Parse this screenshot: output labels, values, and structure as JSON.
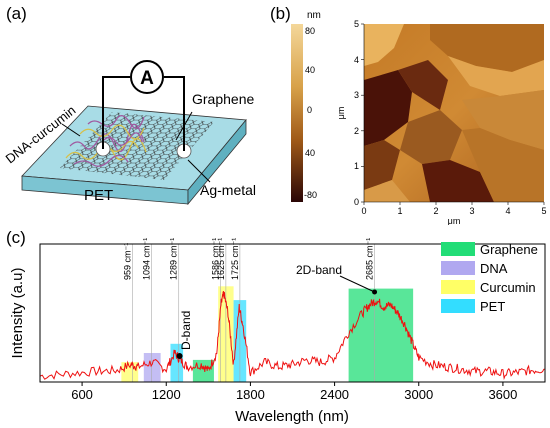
{
  "panel_a": {
    "label": "(a)",
    "ammeter_symbol": "A",
    "labels": {
      "dna_curcumin": "DNA-curcumin",
      "graphene": "Graphene",
      "pet": "PET",
      "ag_metal": "Ag-metal"
    },
    "colors": {
      "substrate_top": "#a8dce6",
      "substrate_front": "#7cc4d2",
      "substrate_side": "#5fb0c0",
      "grid": "#333333",
      "dna": "#d6c04a",
      "dna_alt": "#a05aa0"
    }
  },
  "panel_b": {
    "label": "(b)",
    "colorbar": {
      "unit": "nm",
      "ticks": [
        "80",
        "40",
        "0",
        "40",
        "-80"
      ]
    },
    "x_axis": {
      "ticks": [
        "0",
        "1",
        "2",
        "3",
        "4",
        "5"
      ],
      "label": "μm"
    },
    "y_axis": {
      "ticks": [
        "0",
        "1",
        "2",
        "3",
        "4",
        "5"
      ],
      "label": "μm"
    }
  },
  "panel_c": {
    "label": "(c)",
    "chart_data": {
      "type": "line",
      "xlabel": "Wavelength (nm)",
      "ylabel": "Intensity (a.u)",
      "xlim": [
        300,
        3900
      ],
      "x_ticks": [
        600,
        1200,
        1800,
        2400,
        3000,
        3600
      ],
      "peak_lines": [
        {
          "x": 959,
          "label": "959 cm⁻¹"
        },
        {
          "x": 1094,
          "label": "1094 cm⁻¹"
        },
        {
          "x": 1289,
          "label": "1289 cm⁻¹"
        },
        {
          "x": 1586,
          "label": "1586 cm⁻¹"
        },
        {
          "x": 1625,
          "label": "1625 cm⁻¹"
        },
        {
          "x": 1725,
          "label": "1725 cm⁻¹"
        },
        {
          "x": 2685,
          "label": "2685 cm⁻¹"
        }
      ],
      "annotations": [
        {
          "text": "D-band",
          "x": 1300
        },
        {
          "text": "2D-band",
          "x": 2700
        }
      ],
      "legend": {
        "placement": "top-right",
        "entries": [
          {
            "name": "Graphene",
            "color": "#22dd77"
          },
          {
            "name": "DNA",
            "color": "#b0a8f0"
          },
          {
            "name": "Curcumin",
            "color": "#ffff66"
          },
          {
            "name": "PET",
            "color": "#33ddff"
          }
        ]
      },
      "shaded_regions": [
        {
          "name": "Curcumin",
          "x0": 880,
          "x1": 1000,
          "level": 0.12,
          "color": "#ffff66"
        },
        {
          "name": "DNA",
          "x0": 1040,
          "x1": 1160,
          "level": 0.2,
          "color": "#b0a8f0"
        },
        {
          "name": "PET",
          "x0": 1230,
          "x1": 1320,
          "level": 0.28,
          "color": "#33ddff"
        },
        {
          "name": "Graphene",
          "x0": 1390,
          "x1": 1540,
          "level": 0.14,
          "color": "#22dd77"
        },
        {
          "name": "Curcumin",
          "x0": 1570,
          "x1": 1680,
          "level": 0.78,
          "color": "#ffff66"
        },
        {
          "name": "PET",
          "x0": 1680,
          "x1": 1770,
          "level": 0.66,
          "color": "#33ddff"
        },
        {
          "name": "Graphene",
          "x0": 2500,
          "x1": 2960,
          "level": 0.76,
          "color": "#22dd77"
        }
      ],
      "series": [
        {
          "color": "#ee1111",
          "x": [
            300,
            500,
            700,
            850,
            950,
            1000,
            1100,
            1200,
            1260,
            1300,
            1350,
            1450,
            1500,
            1560,
            1590,
            1610,
            1640,
            1680,
            1720,
            1750,
            1800,
            1900,
            2000,
            2100,
            2200,
            2300,
            2400,
            2500,
            2600,
            2650,
            2700,
            2750,
            2800,
            2850,
            2900,
            2950,
            3000,
            3100,
            3200,
            3300,
            3400,
            3500,
            3600,
            3700,
            3800,
            3900
          ],
          "y": [
            0.0,
            0.02,
            0.04,
            0.05,
            0.1,
            0.08,
            0.12,
            0.06,
            0.2,
            0.14,
            0.08,
            0.1,
            0.05,
            0.2,
            0.62,
            0.72,
            0.55,
            0.1,
            0.6,
            0.42,
            0.03,
            0.12,
            0.08,
            0.1,
            0.14,
            0.12,
            0.16,
            0.38,
            0.55,
            0.62,
            0.66,
            0.6,
            0.62,
            0.55,
            0.45,
            0.3,
            0.16,
            0.1,
            0.08,
            0.06,
            0.04,
            0.04,
            0.02,
            0.03,
            0.05,
            0.06
          ]
        }
      ]
    }
  }
}
